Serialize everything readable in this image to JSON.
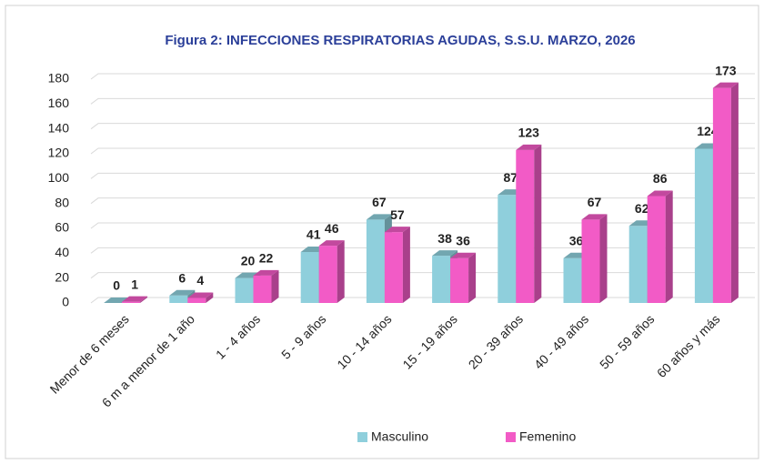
{
  "chart_data": {
    "type": "bar3d",
    "title": "Figura 2: INFECCIONES RESPIRATORIAS AGUDAS, S.S.U. MARZO, 2026",
    "categories": [
      "Menor de 6 meses",
      "6 m a menor de 1 año",
      "1 - 4 años",
      "5 - 9 años",
      "10 - 14 años",
      "15 - 19 años",
      "20 - 39 años",
      "40 - 49 años",
      "50 - 59 años",
      "60 años y más"
    ],
    "series": [
      {
        "name": "Masculino",
        "color": "#8fcfdc",
        "values": [
          0,
          6,
          20,
          41,
          67,
          38,
          87,
          36,
          62,
          124
        ]
      },
      {
        "name": "Femenino",
        "color": "#f25bc6",
        "values": [
          1,
          4,
          22,
          46,
          57,
          36,
          123,
          67,
          86,
          173
        ]
      }
    ],
    "ylim": [
      0,
      180
    ],
    "yticks": [
      0,
      20,
      40,
      60,
      80,
      100,
      120,
      140,
      160,
      180
    ],
    "grid": true,
    "legend": "bottom"
  }
}
